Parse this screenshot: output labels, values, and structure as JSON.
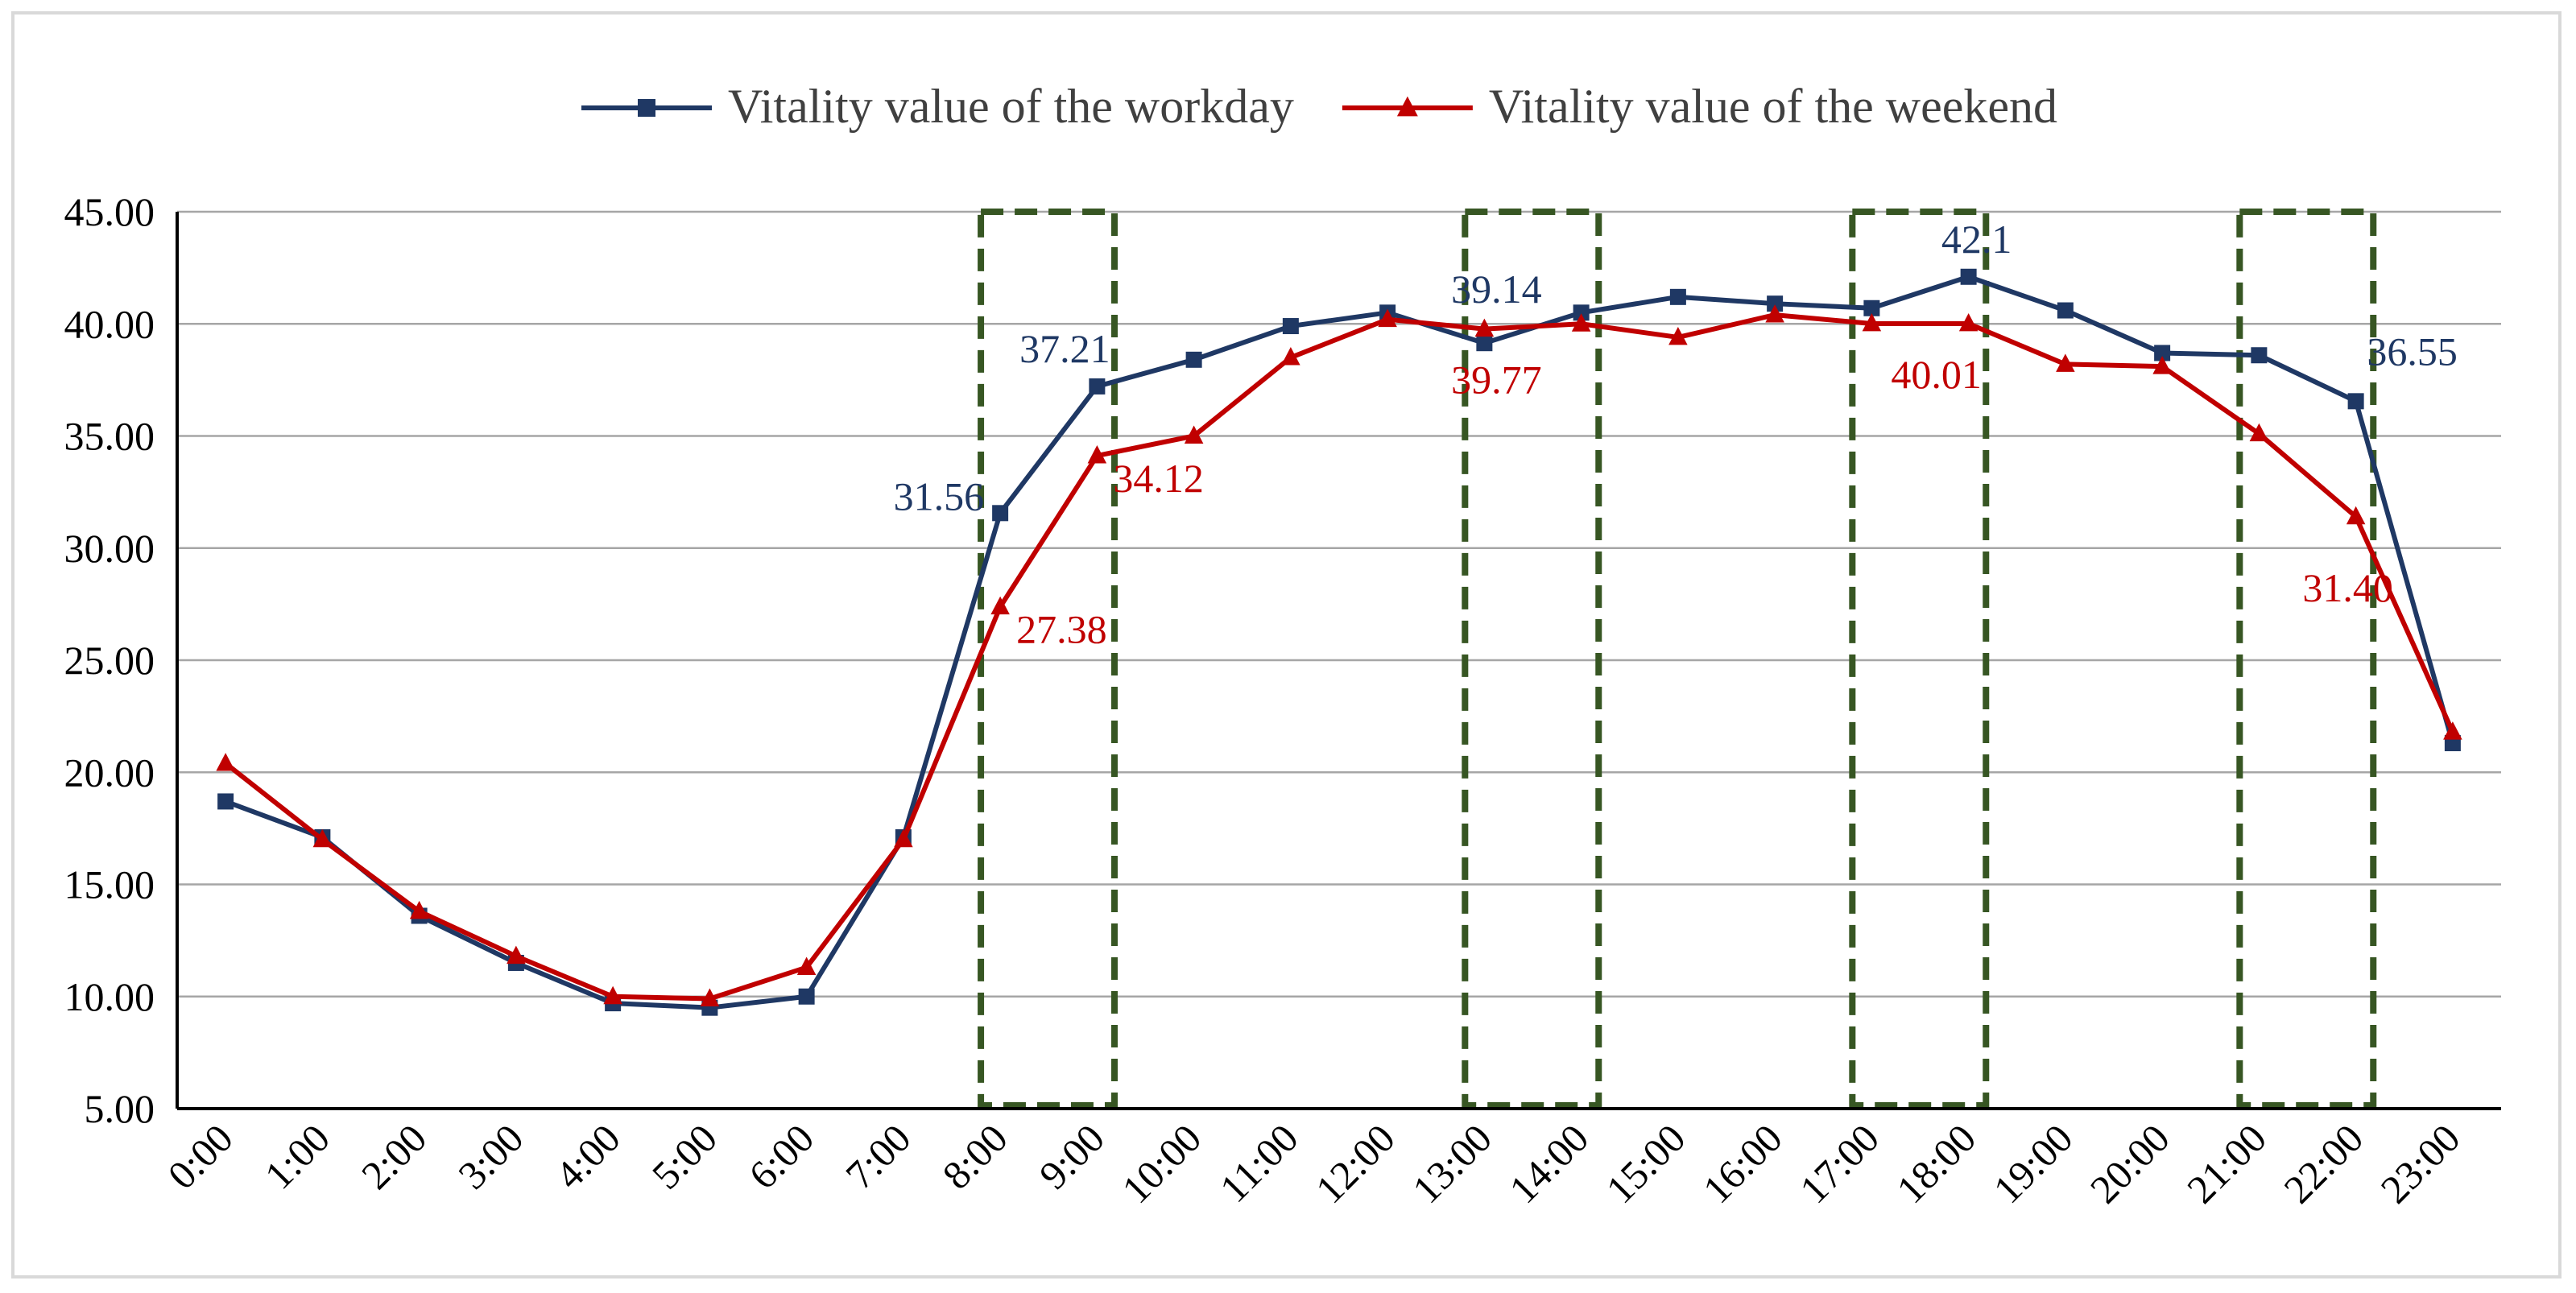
{
  "chart_data": {
    "type": "line",
    "categories": [
      "0:00",
      "1:00",
      "2:00",
      "3:00",
      "4:00",
      "5:00",
      "6:00",
      "7:00",
      "8:00",
      "9:00",
      "10:00",
      "11:00",
      "12:00",
      "13:00",
      "14:00",
      "15:00",
      "16:00",
      "17:00",
      "18:00",
      "19:00",
      "20:00",
      "21:00",
      "22:00",
      "23:00"
    ],
    "ylim": [
      5,
      45
    ],
    "yticks": [
      "5.00",
      "10.00",
      "15.00",
      "20.00",
      "25.00",
      "30.00",
      "35.00",
      "40.00",
      "45.00"
    ],
    "grid": true,
    "legend_position": "top",
    "series": [
      {
        "name": "Vitality value of the workday",
        "color": "#1f3864",
        "marker": "square",
        "values": [
          18.7,
          17.1,
          13.6,
          11.5,
          9.7,
          9.5,
          10.0,
          17.1,
          31.56,
          37.21,
          38.4,
          39.9,
          40.5,
          39.14,
          40.5,
          41.2,
          40.9,
          40.7,
          42.1,
          40.6,
          38.7,
          38.6,
          36.55,
          21.3
        ]
      },
      {
        "name": "Vitality value of the weekend",
        "color": "#c00000",
        "marker": "triangle",
        "values": [
          20.4,
          17.0,
          13.8,
          11.8,
          10.0,
          9.9,
          11.3,
          17.0,
          27.38,
          34.12,
          35.0,
          38.5,
          40.2,
          39.77,
          40.0,
          39.4,
          40.4,
          40.01,
          40.01,
          38.2,
          38.1,
          35.1,
          31.4,
          21.8
        ]
      }
    ],
    "annotations": [
      {
        "text": "31.56",
        "series": 0,
        "index": 8
      },
      {
        "text": "37.21",
        "series": 0,
        "index": 9
      },
      {
        "text": "39.14",
        "series": 0,
        "index": 13
      },
      {
        "text": "42.1",
        "series": 0,
        "index": 18
      },
      {
        "text": "36.55",
        "series": 0,
        "index": 22
      },
      {
        "text": "27.38",
        "series": 1,
        "index": 8
      },
      {
        "text": "34.12",
        "series": 1,
        "index": 9
      },
      {
        "text": "39.77",
        "series": 1,
        "index": 13
      },
      {
        "text": "40.01",
        "series": 1,
        "index": 18
      },
      {
        "text": "31.40",
        "series": 1,
        "index": 22
      }
    ],
    "highlight_boxes": [
      {
        "from": "8:00",
        "to": "9:00"
      },
      {
        "from": "13:00",
        "to": "14:00"
      },
      {
        "from": "17:00",
        "to": "18:00"
      },
      {
        "from": "21:00",
        "to": "22:00"
      }
    ],
    "highlight_color": "#375623"
  }
}
